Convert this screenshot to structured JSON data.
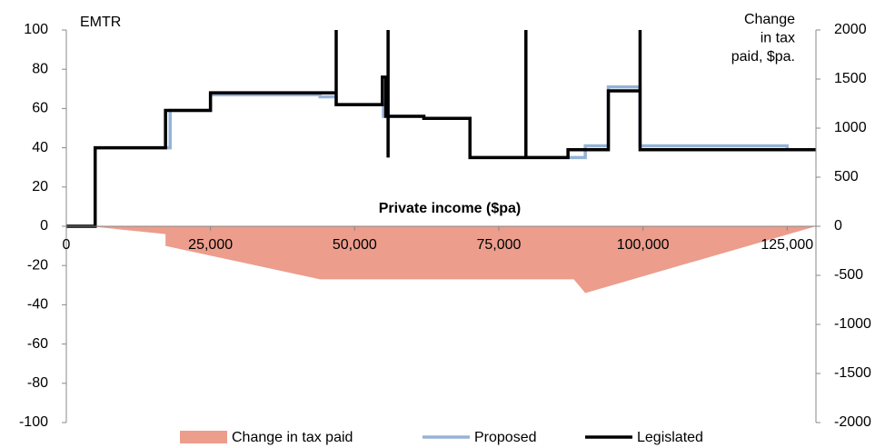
{
  "chart_data": {
    "type": "line",
    "x_label": "Private income ($pa)",
    "y_label": "EMTR",
    "y2_label": [
      "Change",
      "in tax",
      "paid, $pa."
    ],
    "xlim": [
      0,
      130000
    ],
    "xticks": [
      0,
      {
        "value": 25000,
        "label": "25,000"
      },
      {
        "value": 50000,
        "label": "50,000"
      },
      {
        "value": 75000,
        "label": "75,000"
      },
      {
        "value": 100000,
        "label": "100,000"
      },
      {
        "value": 125000,
        "label": "125,000"
      }
    ],
    "ylim": [
      -100,
      100
    ],
    "yticks": [
      -100,
      -80,
      -60,
      -40,
      -20,
      0,
      20,
      40,
      60,
      80,
      100
    ],
    "y2lim": [
      -2000,
      2000
    ],
    "y2ticks": [
      -2000,
      -1500,
      -1000,
      -500,
      0,
      500,
      1000,
      1500,
      2000
    ],
    "legend": "bottom",
    "series": [
      {
        "name": "Change in tax paid",
        "type": "area",
        "axis": "y2",
        "color": "#ec9d8c",
        "x": [
          0,
          4000,
          17200,
          17200,
          44000,
          88000,
          90000,
          130000
        ],
        "values": [
          0,
          0,
          -80,
          -200,
          -540,
          -540,
          -680,
          0
        ]
      },
      {
        "name": "Proposed",
        "type": "line",
        "color": "#95b3d7",
        "x": [
          0,
          5000,
          5000,
          18000,
          18000,
          25000,
          25000,
          44000,
          44000,
          46800,
          46800,
          55000,
          55000,
          62000,
          62000,
          70000,
          70000,
          90000,
          90000,
          94000,
          94000,
          99500,
          99500,
          125000,
          125000,
          130000
        ],
        "values": [
          0,
          0,
          40,
          40,
          59,
          59,
          67,
          67,
          66,
          66,
          62,
          62,
          56,
          56,
          55,
          55,
          35,
          35,
          41,
          41,
          71,
          71,
          41,
          41,
          39,
          39
        ]
      },
      {
        "name": "Legislated",
        "type": "line",
        "color": "#000000",
        "x": [
          0,
          5000,
          5000,
          17200,
          17200,
          25000,
          25000,
          46800,
          46800,
          46800,
          54800,
          54800,
          55400,
          55400,
          55800,
          55800,
          55800,
          55800,
          62000,
          62000,
          70000,
          70000,
          79700,
          79700,
          79700,
          87000,
          87000,
          94000,
          94000,
          99500,
          99500,
          99500,
          130000
        ],
        "values": [
          0,
          0,
          40,
          40,
          59,
          59,
          68,
          68,
          100,
          62,
          62,
          76,
          76,
          56,
          56,
          100,
          35,
          56,
          56,
          55,
          55,
          35,
          35,
          100,
          35,
          35,
          39,
          39,
          69,
          69,
          100,
          39,
          39
        ]
      }
    ]
  }
}
